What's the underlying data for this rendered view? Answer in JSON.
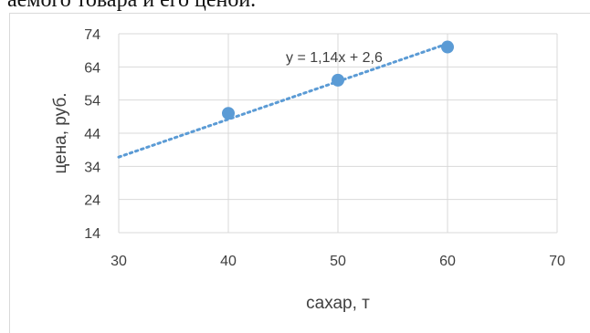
{
  "header": {
    "partial_text": "аемого товара и его ценой."
  },
  "chart_data": {
    "type": "scatter",
    "series": [
      {
        "x": [
          40,
          50,
          60
        ],
        "y": [
          50,
          60,
          70
        ],
        "color": "#5b9bd5"
      }
    ],
    "trendline": {
      "label": "y = 1,14x + 2,6",
      "slope": 1.14,
      "intercept": 2.6,
      "x_range": [
        30,
        60
      ],
      "color": "#5b9bd5",
      "style": "dotted"
    },
    "xlabel": "сахар, т",
    "ylabel": "цена, руб.",
    "xlim": [
      30,
      70
    ],
    "ylim": [
      14,
      74
    ],
    "x_ticks": [
      30,
      40,
      50,
      60,
      70
    ],
    "y_ticks": [
      14,
      24,
      34,
      44,
      54,
      64,
      74
    ],
    "grid": true,
    "grid_color": "#d9d9d9",
    "text_color": "#404040",
    "legend": "none"
  }
}
